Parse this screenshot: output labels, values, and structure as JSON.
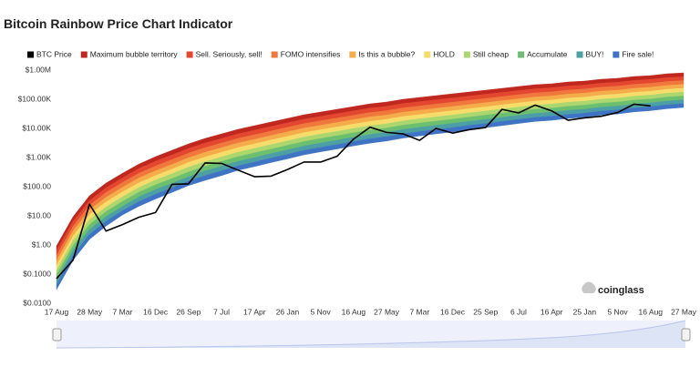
{
  "chart_data": {
    "type": "line",
    "title": "Bitcoin Rainbow Price Chart Indicator",
    "watermark": "coinglass",
    "log_scale": true,
    "grid": false,
    "legend": "top",
    "categories": [
      "17 Aug",
      null,
      "28 May",
      null,
      "7 Mar",
      null,
      "16 Dec",
      null,
      "26 Sep",
      null,
      "7 Jul",
      null,
      "17 Apr",
      null,
      "26 Jan",
      null,
      "5 Nov",
      null,
      "16 Aug",
      null,
      "27 May",
      null,
      "7 Mar",
      null,
      "16 Dec",
      null,
      "25 Sep",
      null,
      "6 Jul",
      null,
      "16 Apr",
      null,
      "25 Jan",
      null,
      "5 Nov",
      null,
      "16 Aug",
      null,
      "27 May"
    ],
    "ylim": [
      0.01,
      1000000
    ],
    "yticks": [
      {
        "value": 0.01,
        "label": "$0.0100"
      },
      {
        "value": 0.1,
        "label": "$0.1000"
      },
      {
        "value": 1,
        "label": "$1.00"
      },
      {
        "value": 10,
        "label": "$10.00"
      },
      {
        "value": 100,
        "label": "$100.00"
      },
      {
        "value": 1000,
        "label": "$1.00K"
      },
      {
        "value": 10000,
        "label": "$10.00K"
      },
      {
        "value": 100000,
        "label": "$100.00K"
      },
      {
        "value": 1000000,
        "label": "$1.00M"
      }
    ],
    "series": [
      {
        "name": "BTC Price",
        "type": "line",
        "color": "#000000",
        "values": [
          0.07,
          0.3,
          25,
          3,
          5,
          9,
          13,
          120,
          125,
          650,
          630,
          370,
          220,
          230,
          390,
          700,
          700,
          1100,
          4300,
          11000,
          7300,
          6500,
          3900,
          10000,
          6900,
          9000,
          10700,
          45000,
          34000,
          63000,
          40000,
          19000,
          23000,
          26000,
          35000,
          68000,
          59000,
          null,
          null
        ]
      },
      {
        "name": "Maximum bubble territory",
        "type": "area",
        "color": "#c0281f",
        "values": [
          0.93,
          9.3,
          49,
          133,
          290,
          600,
          1070,
          1780,
          2940,
          4530,
          6490,
          9310,
          12400,
          16600,
          22100,
          29400,
          36500,
          45300,
          56200,
          69800,
          80500,
          100000,
          115500,
          133400,
          154000,
          177800,
          205000,
          237000,
          274000,
          316000,
          340000,
          393000,
          422000,
          487000,
          524000,
          604000,
          649000,
          750000,
          805000
        ]
      },
      {
        "name": "Sell. Seriously, sell!",
        "type": "area",
        "color": "#e4472f",
        "values": [
          0.63,
          6.4,
          33,
          91,
          200,
          420,
          740,
          1230,
          2040,
          3140,
          4510,
          6490,
          8670,
          11600,
          15500,
          20700,
          25700,
          32000,
          39800,
          49400,
          57200,
          71100,
          82400,
          95400,
          110000,
          127700,
          148000,
          171000,
          198000,
          229000,
          247000,
          285000,
          307000,
          356000,
          383000,
          443000,
          477000,
          552000,
          594000
        ]
      },
      {
        "name": "FOMO intensifies",
        "type": "area",
        "color": "#f0783c",
        "values": [
          0.43,
          4.3,
          23,
          63,
          140,
          290,
          510,
          850,
          1410,
          2180,
          3140,
          4520,
          6050,
          8110,
          10900,
          14600,
          18200,
          22600,
          28200,
          35000,
          40600,
          50600,
          58700,
          68200,
          79000,
          91700,
          106000,
          123000,
          143000,
          166000,
          179000,
          207000,
          224000,
          260000,
          280000,
          325000,
          351000,
          406000,
          438000
        ]
      },
      {
        "name": "Is this a bubble?",
        "type": "area",
        "color": "#f5ac4a",
        "values": [
          0.29,
          3.0,
          16,
          43,
          95,
          200,
          350,
          580,
          980,
          1510,
          2180,
          3150,
          4220,
          5680,
          7610,
          10200,
          12800,
          15900,
          20000,
          24800,
          28800,
          35900,
          41900,
          48800,
          56500,
          65800,
          76300,
          88800,
          103000,
          120000,
          130000,
          150000,
          163000,
          190000,
          205000,
          238000,
          258000,
          299000,
          324000
        ]
      },
      {
        "name": "HOLD",
        "type": "area",
        "color": "#f6dd6b",
        "values": [
          0.2,
          2.0,
          11,
          30,
          66,
          136,
          240,
          400,
          680,
          1040,
          1510,
          2200,
          2950,
          3980,
          5330,
          7190,
          9030,
          11200,
          14100,
          17500,
          20500,
          25600,
          29900,
          34900,
          40500,
          47200,
          54900,
          64100,
          74700,
          86900,
          94300,
          109000,
          118000,
          138000,
          150000,
          174000,
          189000,
          220000,
          239000
        ]
      },
      {
        "name": "Still cheap",
        "type": "area",
        "color": "#acd66e",
        "values": [
          0.136,
          1.4,
          7.3,
          20,
          45,
          94,
          170,
          280,
          470,
          720,
          1050,
          1530,
          2060,
          2780,
          3740,
          5060,
          6360,
          7930,
          10000,
          12400,
          14500,
          18200,
          21300,
          24900,
          29000,
          33900,
          39500,
          46200,
          54000,
          62900,
          68500,
          79200,
          86200,
          101000,
          109000,
          128000,
          139000,
          162000,
          176000
        ]
      },
      {
        "name": "Accumulate",
        "type": "area",
        "color": "#6cbf6e",
        "values": [
          0.093,
          0.95,
          5.0,
          14,
          31,
          65,
          116,
          190,
          320,
          500,
          730,
          1070,
          1440,
          1950,
          2620,
          3550,
          4490,
          5600,
          7080,
          8780,
          10300,
          12900,
          15200,
          17800,
          20800,
          24400,
          28400,
          33300,
          39100,
          45500,
          49700,
          57500,
          62800,
          73700,
          79900,
          93600,
          102000,
          119000,
          130000
        ]
      },
      {
        "name": "BUY!",
        "type": "area",
        "color": "#4c9fa3",
        "values": [
          0.063,
          0.65,
          3.4,
          9.5,
          21,
          45,
          80,
          130,
          220,
          350,
          510,
          740,
          1000,
          1370,
          1840,
          2500,
          3160,
          3950,
          5010,
          6220,
          7320,
          9190,
          10800,
          12800,
          14900,
          17500,
          20400,
          24000,
          28200,
          33000,
          36100,
          41800,
          45700,
          53800,
          58400,
          68600,
          75200,
          87600,
          96000
        ]
      },
      {
        "name": "Fire sale!",
        "type": "area",
        "color": "#3f74c4",
        "values": [
          0.043,
          0.44,
          2.3,
          6.5,
          15,
          31,
          55,
          91,
          155,
          240,
          350,
          520,
          700,
          960,
          1290,
          1760,
          2230,
          2790,
          3550,
          4400,
          5200,
          6530,
          7710,
          9120,
          10600,
          12600,
          14700,
          17300,
          20400,
          23900,
          26200,
          30300,
          33300,
          39300,
          42700,
          50300,
          55300,
          64500,
          70900
        ]
      }
    ]
  }
}
